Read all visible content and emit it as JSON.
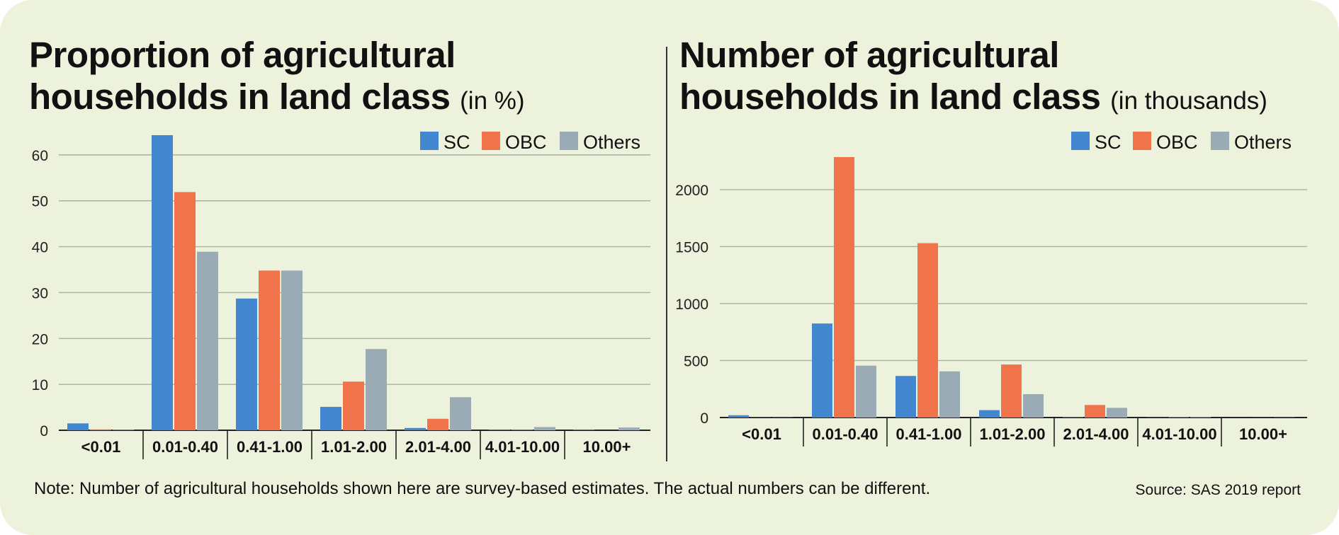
{
  "left_title": {
    "main_line1": "Proportion of agricultural",
    "main_line2": "households in land class",
    "unit": "(in %)"
  },
  "right_title": {
    "main_line1": "Number of agricultural",
    "main_line2": "households in land class",
    "unit": "(in thousands)"
  },
  "note": "Note: Number of agricultural households shown here are survey-based estimates. The actual numbers can be different.",
  "source": "Source: SAS 2019 report",
  "colors": {
    "SC": "#4287cf",
    "OBC": "#f0734b",
    "Others": "#9babb5",
    "grid": "#a9b0a0",
    "axis": "#222222"
  },
  "chart_data": [
    {
      "type": "bar",
      "title": "Proportion of agricultural households in land class (in %)",
      "xlabel": "",
      "ylabel": "",
      "categories": [
        "<0.01",
        "0.01-0.40",
        "0.41-1.00",
        "1.01-2.00",
        "2.01-4.00",
        "4.01-10.00",
        "10.00+"
      ],
      "series": [
        {
          "name": "SC",
          "values": [
            1.5,
            64.3,
            28.7,
            5.1,
            0.5,
            0.1,
            0.1
          ]
        },
        {
          "name": "OBC",
          "values": [
            0.2,
            51.9,
            34.8,
            10.6,
            2.5,
            0.1,
            0.0
          ]
        },
        {
          "name": "Others",
          "values": [
            0.1,
            38.9,
            34.8,
            17.7,
            7.2,
            0.7,
            0.6
          ]
        }
      ],
      "yticks": [
        0,
        10,
        20,
        30,
        40,
        50,
        60
      ],
      "ylim": [
        0,
        64.3
      ],
      "grid": true,
      "legend": "top-right"
    },
    {
      "type": "bar",
      "title": "Number of agricultural households in land class (in thousands)",
      "xlabel": "",
      "ylabel": "",
      "categories": [
        "<0.01",
        "0.01-0.40",
        "0.41-1.00",
        "1.01-2.00",
        "2.01-4.00",
        "4.01-10.00",
        "10.00+"
      ],
      "series": [
        {
          "name": "SC",
          "values": [
            20,
            825,
            365,
            65,
            5,
            2,
            1
          ]
        },
        {
          "name": "OBC",
          "values": [
            2,
            2285,
            1530,
            465,
            110,
            5,
            1
          ]
        },
        {
          "name": "Others",
          "values": [
            2,
            455,
            405,
            205,
            85,
            5,
            2
          ]
        }
      ],
      "yticks": [
        0,
        500,
        1000,
        1500,
        2000
      ],
      "ylim": [
        0,
        2285
      ],
      "grid": true,
      "legend": "top-right"
    }
  ]
}
